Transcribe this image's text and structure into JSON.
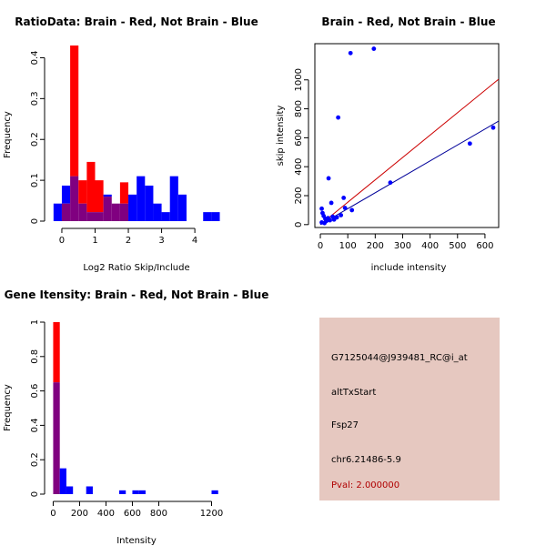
{
  "colors": {
    "brain": "#ff0000",
    "not_brain": "#0000ff",
    "overlap": "#800080",
    "info_bg": "#e6c8c0",
    "pval": "#b00000",
    "fit_brain": "#cc0000",
    "fit_not_brain": "#000099"
  },
  "chart_data": [
    {
      "type": "histogram",
      "title": "RatioData: Brain - Red, Not Brain - Blue",
      "xlabel": "Log2 Ratio Skip/Include",
      "ylabel": "Frequency",
      "xlim": [
        -0.3,
        4.9
      ],
      "ylim": [
        0,
        0.43
      ],
      "xticks": [
        0,
        1,
        2,
        3,
        4
      ],
      "yticks": [
        0,
        0.1,
        0.2,
        0.3,
        0.4
      ],
      "bin_edges": [
        -0.25,
        0.0,
        0.25,
        0.5,
        0.75,
        1.0,
        1.25,
        1.5,
        1.75,
        2.0,
        2.25,
        2.5,
        2.75,
        3.0,
        3.25,
        3.5,
        3.75,
        4.0,
        4.25,
        4.5,
        4.75
      ],
      "series": [
        {
          "name": "Brain",
          "color": "red",
          "values": [
            0,
            0.043,
            0.43,
            0.1,
            0.145,
            0.1,
            0.06,
            0.043,
            0.095,
            0,
            0,
            0,
            0,
            0,
            0,
            0,
            0,
            0,
            0,
            0
          ]
        },
        {
          "name": "Not Brain",
          "color": "blue",
          "values": [
            0.043,
            0.087,
            0.11,
            0.043,
            0.022,
            0.022,
            0.065,
            0.043,
            0.043,
            0.065,
            0.11,
            0.087,
            0.043,
            0.022,
            0.11,
            0.065,
            0,
            0,
            0.022,
            0.022
          ]
        }
      ]
    },
    {
      "type": "scatter",
      "title": "Brain - Red, Not Brain - Blue",
      "xlabel": "include intensity",
      "ylabel": "skip intensity",
      "xlim": [
        -20,
        650
      ],
      "ylim": [
        -20,
        1250
      ],
      "xticks": [
        0,
        100,
        200,
        300,
        400,
        500,
        600
      ],
      "yticks": [
        0,
        200,
        400,
        600,
        800,
        1000
      ],
      "points": [
        {
          "x": 195,
          "y": 1215
        },
        {
          "x": 110,
          "y": 1185
        },
        {
          "x": 65,
          "y": 740
        },
        {
          "x": 30,
          "y": 320
        },
        {
          "x": 545,
          "y": 560
        },
        {
          "x": 630,
          "y": 670
        },
        {
          "x": 255,
          "y": 290
        },
        {
          "x": 85,
          "y": 185
        },
        {
          "x": 40,
          "y": 150
        },
        {
          "x": 90,
          "y": 115
        },
        {
          "x": 115,
          "y": 100
        },
        {
          "x": 5,
          "y": 110
        },
        {
          "x": 8,
          "y": 80
        },
        {
          "x": 12,
          "y": 60
        },
        {
          "x": 18,
          "y": 40
        },
        {
          "x": 22,
          "y": 25
        },
        {
          "x": 5,
          "y": 15
        },
        {
          "x": 15,
          "y": 10
        },
        {
          "x": 35,
          "y": 30
        },
        {
          "x": 45,
          "y": 55
        },
        {
          "x": 60,
          "y": 50
        },
        {
          "x": 75,
          "y": 65
        },
        {
          "x": 28,
          "y": 45
        },
        {
          "x": 50,
          "y": 35
        }
      ],
      "fit_lines": [
        {
          "name": "Brain fit",
          "color": "red",
          "from": [
            0,
            0
          ],
          "to": [
            650,
            1005
          ]
        },
        {
          "name": "Not Brain fit",
          "color": "blue",
          "from": [
            0,
            0
          ],
          "to": [
            650,
            715
          ]
        }
      ]
    },
    {
      "type": "histogram",
      "title": "Gene Itensity: Brain - Red, Not Brain - Blue",
      "xlabel": "Intensity",
      "ylabel": "Frequency",
      "xlim": [
        -10,
        1300
      ],
      "ylim": [
        0,
        1.0
      ],
      "xticks": [
        0,
        200,
        400,
        600,
        800,
        1200
      ],
      "yticks": [
        0,
        0.2,
        0.4,
        0.6,
        0.8,
        1.0
      ],
      "bin_edges": [
        0,
        50,
        100,
        150,
        200,
        250,
        300,
        350,
        400,
        450,
        500,
        550,
        600,
        650,
        700,
        750,
        800,
        850,
        900,
        950,
        1000,
        1050,
        1100,
        1150,
        1200,
        1250,
        1300
      ],
      "series": [
        {
          "name": "Brain",
          "color": "red",
          "values": [
            1.0,
            0,
            0,
            0,
            0,
            0,
            0,
            0,
            0,
            0,
            0,
            0,
            0,
            0,
            0,
            0,
            0,
            0,
            0,
            0,
            0,
            0,
            0,
            0,
            0,
            0
          ]
        },
        {
          "name": "Not Brain",
          "color": "blue",
          "values": [
            0.65,
            0.15,
            0.045,
            0,
            0,
            0.045,
            0,
            0,
            0,
            0,
            0.022,
            0,
            0.022,
            0.022,
            0,
            0,
            0,
            0,
            0,
            0,
            0,
            0,
            0,
            0,
            0.022,
            0
          ]
        }
      ]
    }
  ],
  "info_panel": {
    "probe_id": "G7125044@J939481_RC@i_at",
    "event_type": "altTxStart",
    "gene": "Fsp27",
    "location": "chr6.21486-5.9",
    "pval": "Pval: 2.000000"
  }
}
